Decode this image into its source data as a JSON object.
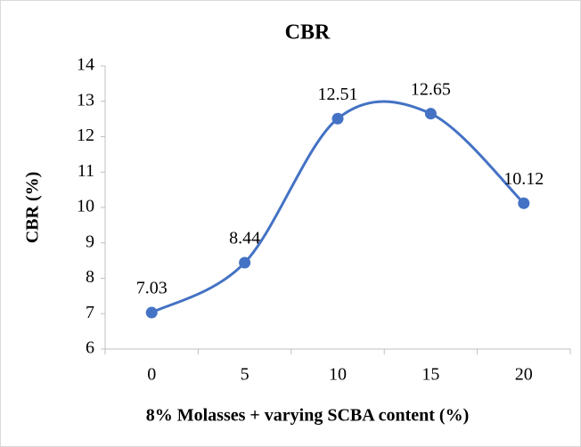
{
  "chart_data": {
    "type": "line",
    "title": "CBR",
    "x_label": "8% Molasses + varying SCBA content (%)",
    "y_label": "CBR (%)",
    "categories": [
      "0",
      "5",
      "10",
      "15",
      "20"
    ],
    "series": [
      {
        "name": "CBR",
        "color": "#4472c4",
        "values": [
          7.03,
          8.44,
          12.51,
          12.65,
          10.12
        ]
      }
    ],
    "ylim": [
      6,
      14
    ],
    "yticks": [
      6,
      7,
      8,
      9,
      10,
      11,
      12,
      13,
      14
    ],
    "smooth": true,
    "data_labels": true
  }
}
